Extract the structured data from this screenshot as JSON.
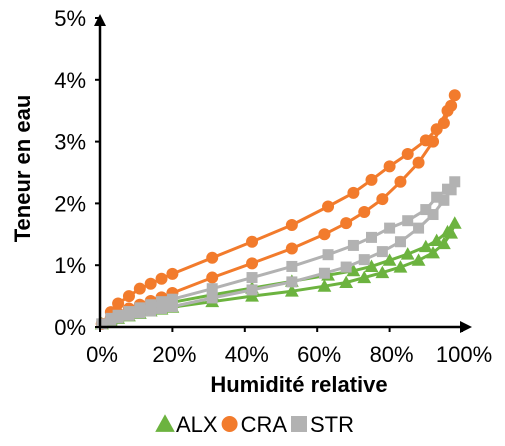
{
  "chart_data": {
    "type": "line",
    "xlabel": "Humidité relative",
    "ylabel": "Teneur en eau",
    "xlim": [
      0,
      100
    ],
    "ylim": [
      0,
      5
    ],
    "x_ticks": [
      "0%",
      "20%",
      "40%",
      "60%",
      "80%",
      "100%"
    ],
    "y_ticks": [
      "0%",
      "1%",
      "2%",
      "3%",
      "4%",
      "5%"
    ],
    "grid": false,
    "legend": "bottom",
    "series": [
      {
        "name": "ALX",
        "color": "#6cb33f",
        "marker": "triangle",
        "points": [
          [
            0.5,
            0.05
          ],
          [
            3,
            0.1
          ],
          [
            5,
            0.14
          ],
          [
            8,
            0.18
          ],
          [
            11,
            0.22
          ],
          [
            14,
            0.26
          ],
          [
            17,
            0.29
          ],
          [
            20,
            0.32
          ],
          [
            31,
            0.41
          ],
          [
            42,
            0.5
          ],
          [
            53,
            0.58
          ],
          [
            62,
            0.66
          ],
          [
            68,
            0.72
          ],
          [
            73,
            0.8
          ],
          [
            78,
            0.88
          ],
          [
            83,
            0.97
          ],
          [
            88,
            1.08
          ],
          [
            92,
            1.2
          ],
          [
            95,
            1.35
          ],
          [
            97,
            1.52
          ],
          [
            98,
            1.68
          ],
          [
            96,
            1.54
          ],
          [
            93,
            1.4
          ],
          [
            90,
            1.3
          ],
          [
            85,
            1.18
          ],
          [
            80,
            1.08
          ],
          [
            75,
            0.98
          ],
          [
            70,
            0.91
          ],
          [
            63,
            0.84
          ],
          [
            53,
            0.74
          ],
          [
            42,
            0.63
          ],
          [
            31,
            0.52
          ],
          [
            20,
            0.4
          ],
          [
            17,
            0.36
          ],
          [
            14,
            0.33
          ],
          [
            11,
            0.29
          ],
          [
            8,
            0.24
          ],
          [
            5,
            0.18
          ],
          [
            3,
            0.13
          ],
          [
            0.5,
            0.05
          ]
        ]
      },
      {
        "name": "CRA",
        "color": "#f27b2c",
        "marker": "circle",
        "points": [
          [
            0.5,
            0.05
          ],
          [
            3,
            0.15
          ],
          [
            5,
            0.22
          ],
          [
            8,
            0.3
          ],
          [
            11,
            0.36
          ],
          [
            14,
            0.42
          ],
          [
            17,
            0.48
          ],
          [
            20,
            0.55
          ],
          [
            31,
            0.8
          ],
          [
            42,
            1.03
          ],
          [
            53,
            1.27
          ],
          [
            62,
            1.5
          ],
          [
            68,
            1.68
          ],
          [
            73,
            1.86
          ],
          [
            78,
            2.07
          ],
          [
            83,
            2.35
          ],
          [
            88,
            2.66
          ],
          [
            92,
            3.0
          ],
          [
            95,
            3.3
          ],
          [
            97,
            3.58
          ],
          [
            98,
            3.75
          ],
          [
            96,
            3.5
          ],
          [
            93,
            3.2
          ],
          [
            90,
            3.02
          ],
          [
            85,
            2.8
          ],
          [
            80,
            2.6
          ],
          [
            75,
            2.38
          ],
          [
            70,
            2.17
          ],
          [
            63,
            1.95
          ],
          [
            53,
            1.65
          ],
          [
            42,
            1.38
          ],
          [
            31,
            1.12
          ],
          [
            20,
            0.86
          ],
          [
            17,
            0.78
          ],
          [
            14,
            0.7
          ],
          [
            11,
            0.62
          ],
          [
            8,
            0.5
          ],
          [
            5,
            0.38
          ],
          [
            3,
            0.24
          ],
          [
            0.5,
            0.05
          ]
        ]
      },
      {
        "name": "STR",
        "color": "#b2b2b2",
        "marker": "square",
        "points": [
          [
            0.5,
            0.05
          ],
          [
            3,
            0.11
          ],
          [
            5,
            0.15
          ],
          [
            8,
            0.19
          ],
          [
            11,
            0.23
          ],
          [
            14,
            0.26
          ],
          [
            17,
            0.3
          ],
          [
            20,
            0.33
          ],
          [
            31,
            0.47
          ],
          [
            42,
            0.6
          ],
          [
            53,
            0.73
          ],
          [
            62,
            0.87
          ],
          [
            68,
            0.97
          ],
          [
            73,
            1.09
          ],
          [
            78,
            1.22
          ],
          [
            83,
            1.38
          ],
          [
            88,
            1.6
          ],
          [
            92,
            1.82
          ],
          [
            95,
            2.05
          ],
          [
            97,
            2.22
          ],
          [
            98,
            2.35
          ],
          [
            96,
            2.23
          ],
          [
            93,
            2.1
          ],
          [
            90,
            1.9
          ],
          [
            85,
            1.72
          ],
          [
            80,
            1.6
          ],
          [
            75,
            1.45
          ],
          [
            70,
            1.32
          ],
          [
            63,
            1.17
          ],
          [
            53,
            0.98
          ],
          [
            42,
            0.8
          ],
          [
            31,
            0.62
          ],
          [
            20,
            0.45
          ],
          [
            17,
            0.41
          ],
          [
            14,
            0.36
          ],
          [
            11,
            0.31
          ],
          [
            8,
            0.25
          ],
          [
            5,
            0.19
          ],
          [
            3,
            0.14
          ],
          [
            0.5,
            0.05
          ]
        ]
      }
    ]
  }
}
